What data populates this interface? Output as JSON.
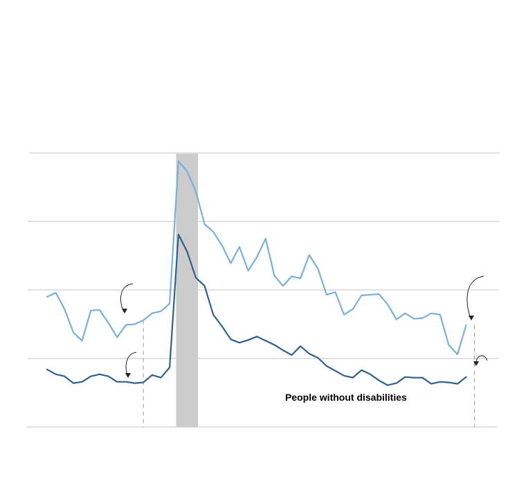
{
  "chart_data": {
    "type": "line",
    "title": "",
    "xlabel": "",
    "ylabel": "",
    "xlim": [
      0,
      51
    ],
    "ylim": [
      0,
      40
    ],
    "grid": true,
    "gridlines": [
      0,
      10,
      20,
      30,
      40
    ],
    "recession_shade": [
      16.0,
      18.5
    ],
    "reference_points": [
      11,
      50
    ],
    "annotations": [
      {
        "text": "People without disabilities"
      }
    ],
    "series": [
      {
        "name": "",
        "color": "#7aaedb",
        "values": [
          19.0,
          19.6,
          17.2,
          13.8,
          12.6,
          17.0,
          17.1,
          15.2,
          13.1,
          14.9,
          15.0,
          15.6,
          16.6,
          16.9,
          18.0,
          38.8,
          37.3,
          34.4,
          29.6,
          28.5,
          26.5,
          23.9,
          26.3,
          22.8,
          24.8,
          27.5,
          22.1,
          20.6,
          22.0,
          21.7,
          25.1,
          23.1,
          19.3,
          19.7,
          16.4,
          17.2,
          19.2,
          19.3,
          19.4,
          17.9,
          15.7,
          16.6,
          15.8,
          15.9,
          16.6,
          16.4,
          12.0,
          10.6,
          14.9
        ]
      },
      {
        "name": "People without disabilities",
        "color": "#2f5f8f",
        "values": [
          8.4,
          7.7,
          7.4,
          6.4,
          6.6,
          7.4,
          7.7,
          7.4,
          6.6,
          6.6,
          6.4,
          6.5,
          7.6,
          7.2,
          8.7,
          28.1,
          25.6,
          21.8,
          20.6,
          16.4,
          14.7,
          12.8,
          12.3,
          12.7,
          13.2,
          12.6,
          12.0,
          11.2,
          10.5,
          11.8,
          10.7,
          10.1,
          8.9,
          8.2,
          7.5,
          7.2,
          8.3,
          7.7,
          6.8,
          6.1,
          6.4,
          7.3,
          7.2,
          7.2,
          6.3,
          6.6,
          6.5,
          6.3,
          7.3
        ]
      }
    ]
  }
}
